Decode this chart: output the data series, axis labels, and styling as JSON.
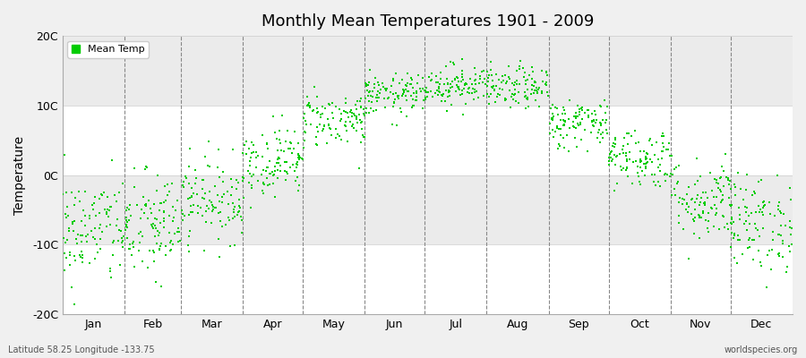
{
  "title": "Monthly Mean Temperatures 1901 - 2009",
  "ylabel": "Temperature",
  "xlabel_labels": [
    "Jan",
    "Feb",
    "Mar",
    "Apr",
    "May",
    "Jun",
    "Jul",
    "Aug",
    "Sep",
    "Oct",
    "Nov",
    "Dec"
  ],
  "ylim": [
    -20,
    20
  ],
  "ytick_labels": [
    "-20C",
    "-10C",
    "0C",
    "10C",
    "20C"
  ],
  "ytick_values": [
    -20,
    -10,
    0,
    10,
    20
  ],
  "dot_color": "#00cc00",
  "dot_size": 3.5,
  "background_color": "#f0f0f0",
  "band_colors": [
    "#ffffff",
    "#ebebeb"
  ],
  "legend_label": "Mean Temp",
  "footer_left": "Latitude 58.25 Longitude -133.75",
  "footer_right": "worldspecies.org",
  "monthly_means": [
    -8.0,
    -7.5,
    -3.5,
    2.0,
    8.0,
    11.5,
    13.0,
    12.5,
    7.5,
    2.5,
    -3.5,
    -7.0
  ],
  "monthly_stds": [
    4.0,
    4.0,
    3.0,
    2.5,
    2.0,
    1.5,
    1.5,
    1.5,
    1.8,
    2.2,
    3.0,
    3.5
  ],
  "n_years": 109
}
